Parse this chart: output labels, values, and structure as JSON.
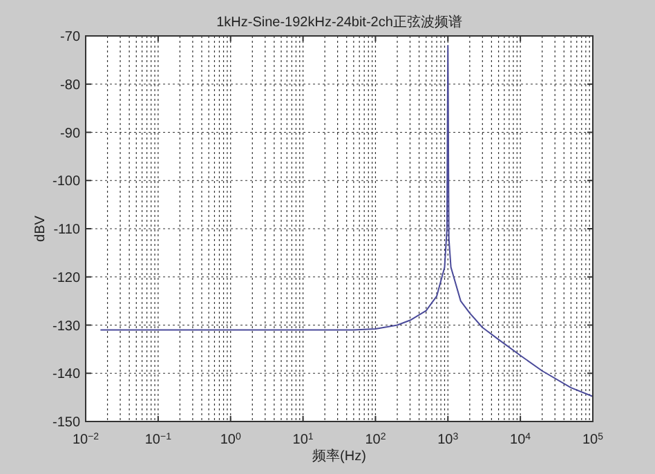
{
  "chart_data": {
    "type": "line",
    "title": "1kHz-Sine-192kHz-24bit-2ch正弦波频谱",
    "xlabel": "频率(Hz)",
    "ylabel": "dBV",
    "log": "x",
    "xlim": [
      0.01,
      100000
    ],
    "ylim": [
      -150,
      -70
    ],
    "xticks": [
      {
        "value": 0.01,
        "label": "10$^{−2}$"
      },
      {
        "value": 0.1,
        "label": "10$^{−1}$"
      },
      {
        "value": 1,
        "label": "10$^{0}$"
      },
      {
        "value": 10,
        "label": "10$^{1}$"
      },
      {
        "value": 100,
        "label": "10$^{2}$"
      },
      {
        "value": 1000,
        "label": "10$^{3}$"
      },
      {
        "value": 10000,
        "label": "10$^{4}$"
      },
      {
        "value": 100000,
        "label": "10$^{5}$"
      }
    ],
    "yticks": [
      -150,
      -140,
      -130,
      -120,
      -110,
      -100,
      -90,
      -80,
      -70
    ],
    "grid": true,
    "series": [
      {
        "color": "#4a4a9a",
        "x": [
          0.016,
          0.1,
          1,
          10,
          50,
          100,
          200,
          300,
          500,
          700,
          900,
          970,
          1000,
          1030,
          1100,
          1500,
          2000,
          3000,
          5000,
          10000,
          20000,
          50000,
          100000
        ],
        "values": [
          -131,
          -131,
          -131,
          -131,
          -131,
          -130.8,
          -130,
          -129,
          -127,
          -124,
          -118,
          -110,
          -72,
          -112,
          -118,
          -125,
          -127.5,
          -130.5,
          -133,
          -136.3,
          -139.5,
          -143,
          -144.8
        ]
      }
    ]
  }
}
